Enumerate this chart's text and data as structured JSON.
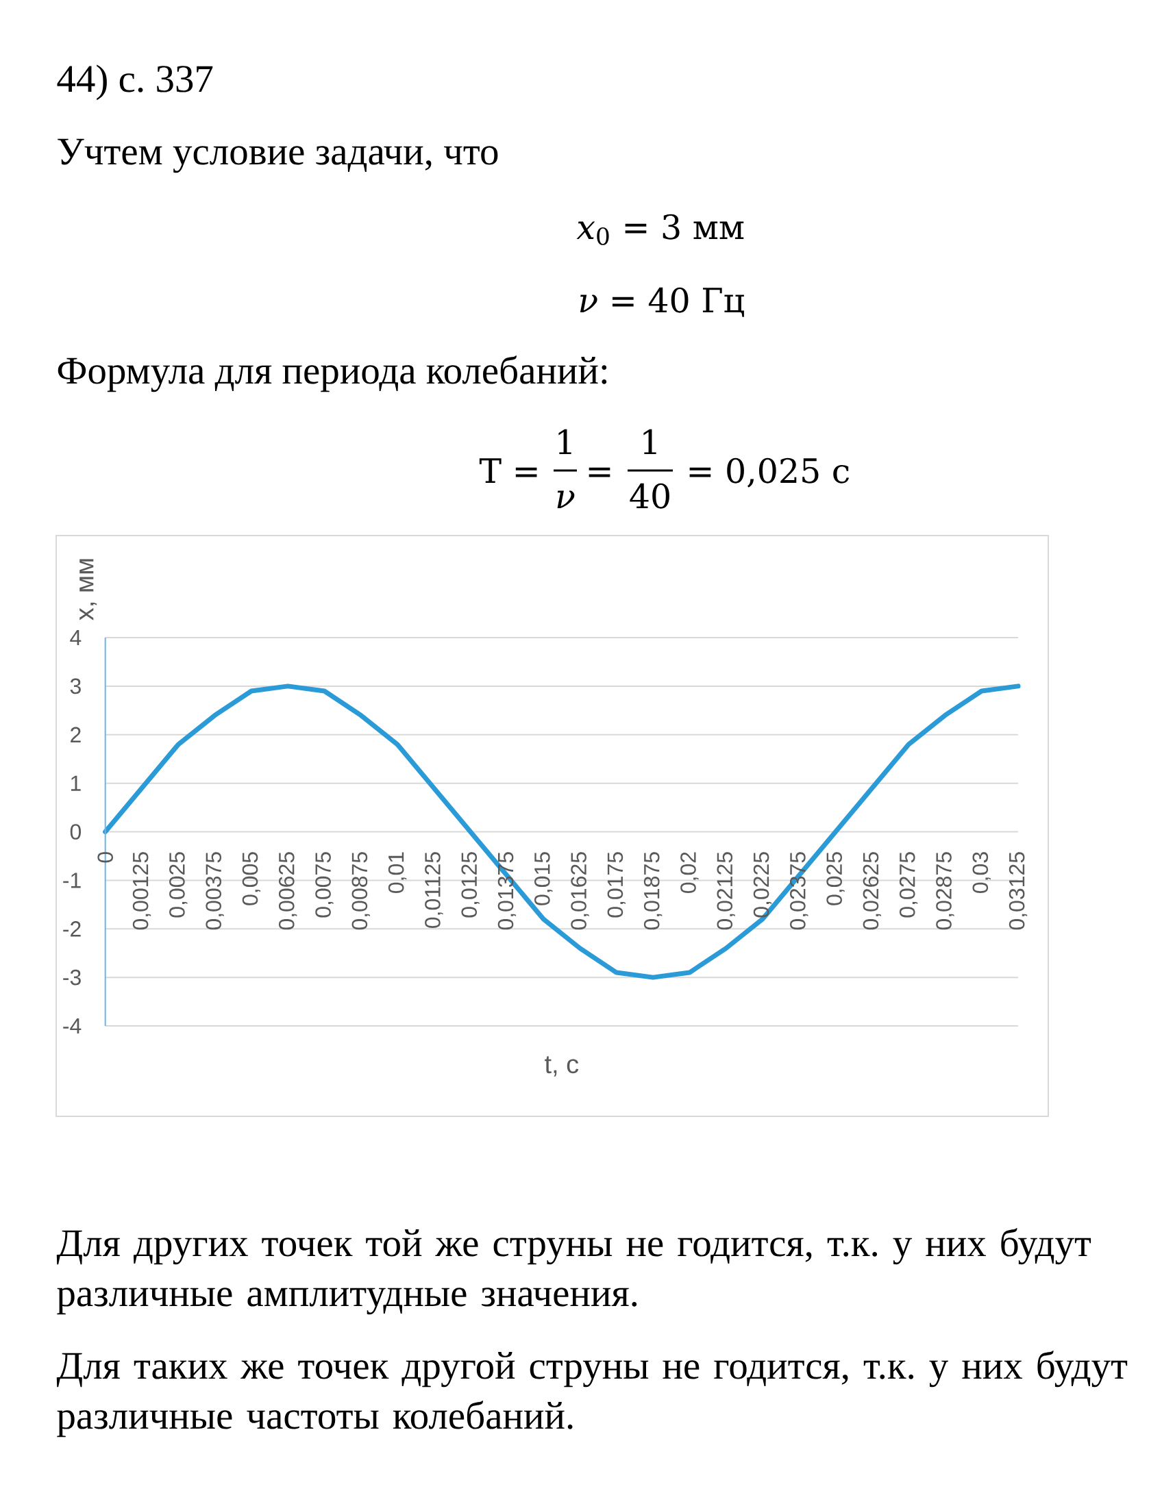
{
  "chart_data": {
    "type": "line",
    "annotations": [
      "44) с. 337",
      "Учтем условие задачи, что",
      "*x*$_{0}$ = 3 мм",
      "*ν* = 40 Гц",
      "Формула для периода колебаний:",
      "T =",
      "1",
      "*ν*",
      "=",
      "1",
      "40",
      "= 0,025 с",
      "Для других точек той же струны не годится, т.к. у них будут различные амплитудные значения.",
      "Для таких же точек другой струны не годится, т.к. у них будут различные частоты колебаний."
    ],
    "xlabel": "t, с",
    "ylabel": "x, мм",
    "categories": [
      "0",
      "0,00125",
      "0,0025",
      "0,00375",
      "0,005",
      "0,00625",
      "0,0075",
      "0,00875",
      "0,01",
      "0,01125",
      "0,0125",
      "0,01375",
      "0,015",
      "0,01625",
      "0,0175",
      "0,01875",
      "0,02",
      "0,02125",
      "0,0225",
      "0,02375",
      "0,025",
      "0,02625",
      "0,0275",
      "0,02875",
      "0,03",
      "0,03125"
    ],
    "values": [
      0,
      0.9,
      1.8,
      2.4,
      2.9,
      3,
      2.9,
      2.4,
      1.8,
      0.9,
      0,
      -0.9,
      -1.8,
      -2.4,
      -2.9,
      -3,
      -2.9,
      -2.4,
      -1.8,
      -0.9,
      0,
      0.9,
      1.8,
      2.4,
      2.9,
      3
    ],
    "color": "#2a9bd7",
    "ylim": [
      -4,
      4
    ],
    "yticks": [
      -4,
      -3,
      -2,
      -1,
      0,
      1,
      2,
      3,
      4
    ],
    "grid": "y"
  }
}
